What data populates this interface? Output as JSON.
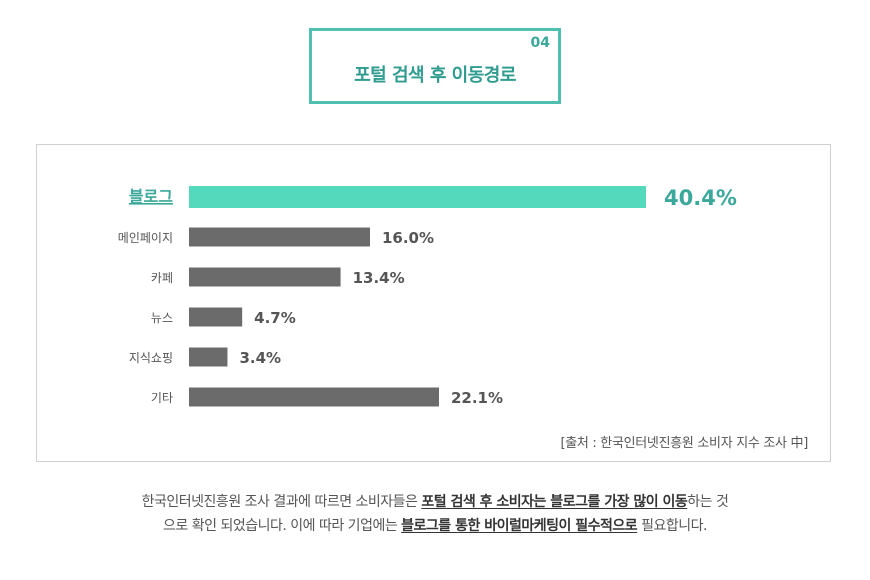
{
  "title": {
    "number": "04",
    "text": "포털 검색 후 이동경로"
  },
  "chart_data": {
    "type": "bar",
    "orientation": "horizontal",
    "categories": [
      "블로그",
      "메인페이지",
      "카페",
      "뉴스",
      "지식쇼핑",
      "기타"
    ],
    "values": [
      40.4,
      16.0,
      13.4,
      4.7,
      3.4,
      22.1
    ],
    "value_labels": [
      "40.4%",
      "16.0%",
      "13.4%",
      "4.7%",
      "3.4%",
      "22.1%"
    ],
    "xlim": [
      0,
      40.4
    ],
    "highlight_index": 0,
    "colors": {
      "highlight": "#55d9bd",
      "default": "#6b6b6b",
      "highlight_text": "#3aa89a"
    },
    "grid": false
  },
  "source": "[출처 : 한국인터넷진흥원 소비자 지수 조사 中]",
  "description": {
    "line1_parts": [
      {
        "text": "한국인터넷진흥원 조사 결과에 따르면 소비자들은 ",
        "bold": false
      },
      {
        "text": "포털 검색 후 소비자는 블로그를 가장 많이 이동",
        "bold": true
      },
      {
        "text": "하는 것",
        "bold": false
      }
    ],
    "line2_parts": [
      {
        "text": "으로 확인 되었습니다. 이에 따라 기업에는 ",
        "bold": false
      },
      {
        "text": "블로그를 통한 바이럴마케팅이 필수적으로",
        "bold": true
      },
      {
        "text": " 필요합니다.",
        "bold": false
      }
    ]
  }
}
